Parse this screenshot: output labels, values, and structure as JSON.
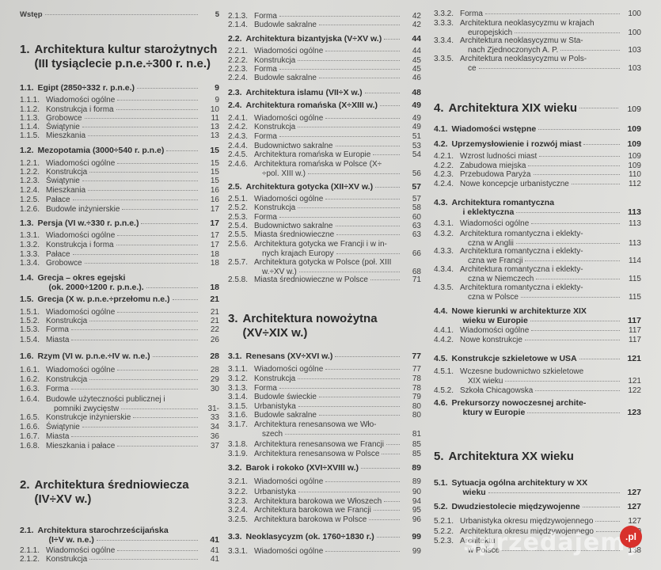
{
  "columns": [
    {
      "entries": [
        {
          "level": "front",
          "num": "",
          "lines": [
            "Wstęp"
          ],
          "page": "5"
        },
        {
          "level": "chapter",
          "num": "1.",
          "lines": [
            "Architektura kultur starożytnych",
            "(III tysiąclecie p.n.e.÷300 r. n.e.)"
          ],
          "page": ""
        },
        {
          "level": "bold",
          "num": "1.1.",
          "lines": [
            "Egipt (2850÷332 r. p.n.e.)"
          ],
          "page": "9"
        },
        {
          "level": "sub",
          "num": "1.1.1.",
          "lines": [
            "Wiadomości ogólne"
          ],
          "page": "9"
        },
        {
          "level": "sub",
          "num": "1.1.2.",
          "lines": [
            "Konstrukcja i forma"
          ],
          "page": "10"
        },
        {
          "level": "sub",
          "num": "1.1.3.",
          "lines": [
            "Grobowce"
          ],
          "page": "11"
        },
        {
          "level": "sub",
          "num": "1.1.4.",
          "lines": [
            "Świątynie"
          ],
          "page": "13"
        },
        {
          "level": "sub",
          "num": "1.1.5.",
          "lines": [
            "Mieszkania"
          ],
          "page": "13"
        },
        {
          "level": "bold",
          "num": "1.2.",
          "lines": [
            "Mezopotamia (3000÷540 r. p.n.e)"
          ],
          "page": "15"
        },
        {
          "level": "sub",
          "num": "1.2.1.",
          "lines": [
            "Wiadomości ogólne"
          ],
          "page": "15"
        },
        {
          "level": "sub",
          "num": "1.2.2.",
          "lines": [
            "Konstrukcja"
          ],
          "page": "15"
        },
        {
          "level": "sub",
          "num": "1.2.3.",
          "lines": [
            "Świątynie"
          ],
          "page": "15"
        },
        {
          "level": "sub",
          "num": "1.2.4.",
          "lines": [
            "Mieszkania"
          ],
          "page": "16"
        },
        {
          "level": "sub",
          "num": "1.2.5.",
          "lines": [
            "Pałace"
          ],
          "page": "16"
        },
        {
          "level": "sub",
          "num": "1.2.6.",
          "lines": [
            "Budowle inżynierskie"
          ],
          "page": "17"
        },
        {
          "level": "bold",
          "num": "1.3.",
          "lines": [
            "Persja (VI w.÷330 r. p.n.e.)"
          ],
          "page": "17"
        },
        {
          "level": "sub",
          "num": "1.3.1.",
          "lines": [
            "Wiadomości ogólne"
          ],
          "page": "17"
        },
        {
          "level": "sub",
          "num": "1.3.2.",
          "lines": [
            "Konstrukcja i forma"
          ],
          "page": "17"
        },
        {
          "level": "sub",
          "num": "1.3.3.",
          "lines": [
            "Pałace"
          ],
          "page": "18"
        },
        {
          "level": "sub",
          "num": "1.3.4.",
          "lines": [
            "Grobowce"
          ],
          "page": "18"
        },
        {
          "level": "bold",
          "num": "1.4.",
          "lines": [
            "Grecja – okres egejski",
            "(ok. 2000÷1200 r. p.n.e.)."
          ],
          "page": "18"
        },
        {
          "level": "bold",
          "num": "1.5.",
          "lines": [
            "Grecja (X w. p.n.e.÷przełomu n.e.)"
          ],
          "page": "21"
        },
        {
          "level": "sub",
          "num": "1.5.1.",
          "lines": [
            "Wiadomości ogólne"
          ],
          "page": "21"
        },
        {
          "level": "sub",
          "num": "1.5.2.",
          "lines": [
            "Konstrukcja"
          ],
          "page": "21"
        },
        {
          "level": "sub",
          "num": "1.5.3.",
          "lines": [
            "Forma"
          ],
          "page": "22"
        },
        {
          "level": "sub",
          "num": "1.5.4.",
          "lines": [
            "Miasta"
          ],
          "page": "26"
        },
        {
          "level": "bold",
          "num": "1.6.",
          "lines": [
            "Rzym (VI w. p.n.e.÷IV w. n.e.)"
          ],
          "page": "28"
        },
        {
          "level": "sub",
          "num": "1.6.1.",
          "lines": [
            "Wiadomości ogólne"
          ],
          "page": "28"
        },
        {
          "level": "sub",
          "num": "1.6.2.",
          "lines": [
            "Konstrukcja"
          ],
          "page": "29"
        },
        {
          "level": "sub",
          "num": "1.6.3.",
          "lines": [
            "Forma"
          ],
          "page": "30"
        },
        {
          "level": "sub",
          "num": "1.6.4.",
          "lines": [
            "Budowle użyteczności publicznej i",
            "pomniki zwycięstw"
          ],
          "page": "31-"
        },
        {
          "level": "sub",
          "num": "1.6.5.",
          "lines": [
            "Konstrukcje inżynierskie"
          ],
          "page": "33"
        },
        {
          "level": "sub",
          "num": "1.6.6.",
          "lines": [
            "Świątynie"
          ],
          "page": "34"
        },
        {
          "level": "sub",
          "num": "1.6.7.",
          "lines": [
            "Miasta"
          ],
          "page": "36"
        },
        {
          "level": "sub",
          "num": "1.6.8.",
          "lines": [
            "Mieszkania i pałace"
          ],
          "page": "37"
        },
        {
          "level": "chapter",
          "num": "2.",
          "lines": [
            "Architektura   średniowiecza",
            "(IV÷XV w.)"
          ],
          "page": ""
        },
        {
          "level": "bold",
          "num": "2.1.",
          "lines": [
            "Architektura   starochrześcijańska",
            "(I÷V w. n.e.)"
          ],
          "page": "41"
        },
        {
          "level": "sub",
          "num": "2.1.1.",
          "lines": [
            "Wiadomości ogólne"
          ],
          "page": "41"
        },
        {
          "level": "sub",
          "num": "2.1.2.",
          "lines": [
            "Konstrukcja"
          ],
          "page": "41"
        }
      ]
    },
    {
      "entries": [
        {
          "level": "sub",
          "num": "2.1.3.",
          "lines": [
            "Forma"
          ],
          "page": "42"
        },
        {
          "level": "sub",
          "num": "2.1.4.",
          "lines": [
            "Budowle sakralne"
          ],
          "page": "42"
        },
        {
          "level": "bold",
          "num": "2.2.",
          "lines": [
            "Architektura bizantyjska (V÷XV w.)"
          ],
          "page": "44"
        },
        {
          "level": "sub",
          "num": "2.2.1.",
          "lines": [
            "Wiadomości ogólne"
          ],
          "page": "44"
        },
        {
          "level": "sub",
          "num": "2.2.2.",
          "lines": [
            "Konstrukcja"
          ],
          "page": "45"
        },
        {
          "level": "sub",
          "num": "2.2.3.",
          "lines": [
            "Forma"
          ],
          "page": "45"
        },
        {
          "level": "sub",
          "num": "2.2.4.",
          "lines": [
            "Budowle sakralne"
          ],
          "page": "46"
        },
        {
          "level": "bold",
          "num": "2.3.",
          "lines": [
            "Architektura islamu (VII÷X w.)"
          ],
          "page": "48"
        },
        {
          "level": "bold",
          "num": "2.4.",
          "lines": [
            "Architektura romańska (X÷XIII w.)"
          ],
          "page": "49"
        },
        {
          "level": "sub",
          "num": "2.4.1.",
          "lines": [
            "Wiadomości ogólne"
          ],
          "page": "49"
        },
        {
          "level": "sub",
          "num": "2.4.2.",
          "lines": [
            "Konstrukcja"
          ],
          "page": "49"
        },
        {
          "level": "sub",
          "num": "2.4.3.",
          "lines": [
            "Forma"
          ],
          "page": "51"
        },
        {
          "level": "sub",
          "num": "2.4.4.",
          "lines": [
            "Budownictwo sakralne"
          ],
          "page": "53"
        },
        {
          "level": "sub",
          "num": "2.4.5.",
          "lines": [
            "Architektura romańska w Europie"
          ],
          "page": "54"
        },
        {
          "level": "sub",
          "num": "2.4.6.",
          "lines": [
            "Architektura romańska w Polsce (X÷",
            "÷pol. XIII w.)"
          ],
          "page": "56"
        },
        {
          "level": "bold",
          "num": "2.5.",
          "lines": [
            "Architektura gotycka (XII÷XV w.)"
          ],
          "page": "57"
        },
        {
          "level": "sub",
          "num": "2.5.1.",
          "lines": [
            "Wiadomości ogólne"
          ],
          "page": "57"
        },
        {
          "level": "sub",
          "num": "2.5.2.",
          "lines": [
            "Konstrukcja"
          ],
          "page": "58"
        },
        {
          "level": "sub",
          "num": "2.5.3.",
          "lines": [
            "Forma"
          ],
          "page": "60"
        },
        {
          "level": "sub",
          "num": "2.5.4.",
          "lines": [
            "Budownictwo sakralne"
          ],
          "page": "63"
        },
        {
          "level": "sub",
          "num": "2.5.5.",
          "lines": [
            "Miasta średniowieczne"
          ],
          "page": "63"
        },
        {
          "level": "sub",
          "num": "2.5.6.",
          "lines": [
            "Architektura gotycka we Francji i w in-",
            "nych krajach Europy"
          ],
          "page": "66"
        },
        {
          "level": "sub",
          "num": "2.5.7.",
          "lines": [
            "Architektura gotycka w Polsce (poł. XIII",
            "w.÷XV w.)"
          ],
          "page": "68"
        },
        {
          "level": "sub",
          "num": "2.5.8.",
          "lines": [
            "Miasta średniowieczne w Polsce"
          ],
          "page": "71"
        },
        {
          "level": "chapter",
          "num": "3.",
          "lines": [
            "Architektura nowożytna",
            "(XV÷XIX w.)"
          ],
          "page": ""
        },
        {
          "level": "bold",
          "num": "3.1.",
          "lines": [
            "Renesans (XV÷XVI w.)"
          ],
          "page": "77"
        },
        {
          "level": "sub",
          "num": "3.1.1.",
          "lines": [
            "Wiadomości ogólne"
          ],
          "page": "77"
        },
        {
          "level": "sub",
          "num": "3.1.2.",
          "lines": [
            "Konstrukcja"
          ],
          "page": "78"
        },
        {
          "level": "sub",
          "num": "3.1.3.",
          "lines": [
            "Forma"
          ],
          "page": "78"
        },
        {
          "level": "sub",
          "num": "3.1.4.",
          "lines": [
            "Budowle świeckie"
          ],
          "page": "79"
        },
        {
          "level": "sub",
          "num": "3.1.5.",
          "lines": [
            "Urbanistyka"
          ],
          "page": "80"
        },
        {
          "level": "sub",
          "num": "3.1.6.",
          "lines": [
            "Budowle sakralne"
          ],
          "page": "80"
        },
        {
          "level": "sub",
          "num": "3.1.7.",
          "lines": [
            "Architektura renesansowa we Wło-",
            "szech"
          ],
          "page": "81"
        },
        {
          "level": "sub",
          "num": "3.1.8.",
          "lines": [
            "Architektura renesansowa we Francji"
          ],
          "page": "85"
        },
        {
          "level": "sub",
          "num": "3.1.9.",
          "lines": [
            "Architektura renesansowa w Polsce"
          ],
          "page": "85"
        },
        {
          "level": "bold",
          "num": "3.2.",
          "lines": [
            "Barok i rokoko (XVI÷XVIII w.)"
          ],
          "page": "89"
        },
        {
          "level": "sub",
          "num": "3.2.1.",
          "lines": [
            "Wiadomości ogólne"
          ],
          "page": "89"
        },
        {
          "level": "sub",
          "num": "3.2.2.",
          "lines": [
            "Urbanistyka"
          ],
          "page": "90"
        },
        {
          "level": "sub",
          "num": "3.2.3.",
          "lines": [
            "Architektura barokowa we Włoszech"
          ],
          "page": "94"
        },
        {
          "level": "sub",
          "num": "3.2.4.",
          "lines": [
            "Architektura barokowa we Francji"
          ],
          "page": "95"
        },
        {
          "level": "sub",
          "num": "3.2.5.",
          "lines": [
            "Architektura barokowa w Polsce"
          ],
          "page": "96"
        },
        {
          "level": "bold",
          "num": "3.3.",
          "lines": [
            "Neoklasycyzm (ok. 1760÷1830 r.)"
          ],
          "page": "99"
        },
        {
          "level": "sub",
          "num": "3.3.1.",
          "lines": [
            "Wiadomości ogólne"
          ],
          "page": "99"
        }
      ]
    },
    {
      "entries": [
        {
          "level": "sub",
          "num": "3.3.2.",
          "lines": [
            "Forma"
          ],
          "page": "100"
        },
        {
          "level": "sub",
          "num": "3.3.3.",
          "lines": [
            "Architektura neoklasycyzmu w krajach",
            "europejskich"
          ],
          "page": "100"
        },
        {
          "level": "sub",
          "num": "3.3.4.",
          "lines": [
            "Architektura neoklasycyzmu w Sta-",
            "nach Zjednoczonych A. P."
          ],
          "page": "103"
        },
        {
          "level": "sub",
          "num": "3.3.5.",
          "lines": [
            "Architektura neoklasycyzmu w Pols-",
            "ce"
          ],
          "page": "103"
        },
        {
          "level": "chapter",
          "num": "4.",
          "lines": [
            "Architektura XIX wieku"
          ],
          "page": "109"
        },
        {
          "level": "bold",
          "num": "4.1.",
          "lines": [
            "Wiadomości wstępne"
          ],
          "page": "109"
        },
        {
          "level": "bold",
          "num": "4.2.",
          "lines": [
            "Uprzemysłowienie i rozwój miast"
          ],
          "page": "109"
        },
        {
          "level": "sub",
          "num": "4.2.1.",
          "lines": [
            "Wzrost ludności miast"
          ],
          "page": "109"
        },
        {
          "level": "sub",
          "num": "4.2.2.",
          "lines": [
            "Zabudowa miejska"
          ],
          "page": "109"
        },
        {
          "level": "sub",
          "num": "4.2.3.",
          "lines": [
            "Przebudowa Paryża"
          ],
          "page": "110"
        },
        {
          "level": "sub",
          "num": "4.2.4.",
          "lines": [
            "Nowe koncepcje urbanistyczne"
          ],
          "page": "112"
        },
        {
          "level": "bold",
          "num": "4.3.",
          "lines": [
            "Architektura romantyczna",
            "i eklektyczna"
          ],
          "page": "113"
        },
        {
          "level": "sub",
          "num": "4.3.1.",
          "lines": [
            "Wiadomości ogólne"
          ],
          "page": "113"
        },
        {
          "level": "sub",
          "num": "4.3.2.",
          "lines": [
            "Architektura romantyczna i eklekty-",
            "czna w Anglii"
          ],
          "page": "113"
        },
        {
          "level": "sub",
          "num": "4.3.3.",
          "lines": [
            "Architektura romantyczna i eklekty-",
            "czna we Francji"
          ],
          "page": "114"
        },
        {
          "level": "sub",
          "num": "4.3.4.",
          "lines": [
            "Architektura romantyczna i eklekty-",
            "czna w Niemczech"
          ],
          "page": "115"
        },
        {
          "level": "sub",
          "num": "4.3.5.",
          "lines": [
            "Architektura romantyczna i eklekty-",
            "czna w Polsce"
          ],
          "page": "115"
        },
        {
          "level": "bold",
          "num": "4.4.",
          "lines": [
            "Nowe kierunki w architekturze XIX",
            "wieku w Europie"
          ],
          "page": "117"
        },
        {
          "level": "sub",
          "num": "4.4.1.",
          "lines": [
            "Wiadomości ogólne"
          ],
          "page": "117"
        },
        {
          "level": "sub",
          "num": "4.4.2.",
          "lines": [
            "Nowe konstrukcje"
          ],
          "page": "117"
        },
        {
          "level": "bold",
          "num": "4.5.",
          "lines": [
            "Konstrukcje szkieletowe w USA"
          ],
          "page": "121"
        },
        {
          "level": "sub",
          "num": "4.5.1.",
          "lines": [
            "Wczesne budownictwo szkieletowe",
            "XIX wieku"
          ],
          "page": "121"
        },
        {
          "level": "sub",
          "num": "4.5.2.",
          "lines": [
            "Szkoła Chicagowska"
          ],
          "page": "122"
        },
        {
          "level": "bold",
          "num": "4.6.",
          "lines": [
            "Prekursorzy nowoczesnej archite-",
            "ktury w Europie"
          ],
          "page": "123"
        },
        {
          "level": "chapter",
          "num": "5.",
          "lines": [
            "Architektura XX wieku"
          ],
          "page": ""
        },
        {
          "level": "bold",
          "num": "5.1.",
          "lines": [
            "Sytuacja ogólna architektury w XX",
            "wieku"
          ],
          "page": "127"
        },
        {
          "level": "bold",
          "num": "5.2.",
          "lines": [
            "Dwudziestolecie międzywojenne"
          ],
          "page": "127"
        },
        {
          "level": "sub",
          "num": "5.2.1.",
          "lines": [
            "Urbanistyka okresu międzywojennego"
          ],
          "page": "127"
        },
        {
          "level": "sub",
          "num": "5.2.2.",
          "lines": [
            "Architektura okresu międzywojennego"
          ],
          "page": "0"
        },
        {
          "level": "sub",
          "num": "5.2.3.",
          "lines": [
            "Architektu",
            "w Polsce"
          ],
          "page": "138"
        }
      ]
    }
  ],
  "watermark": {
    "text": "sprzedajemy",
    "badge": ".pl",
    "badge_color": "#d8312c"
  }
}
